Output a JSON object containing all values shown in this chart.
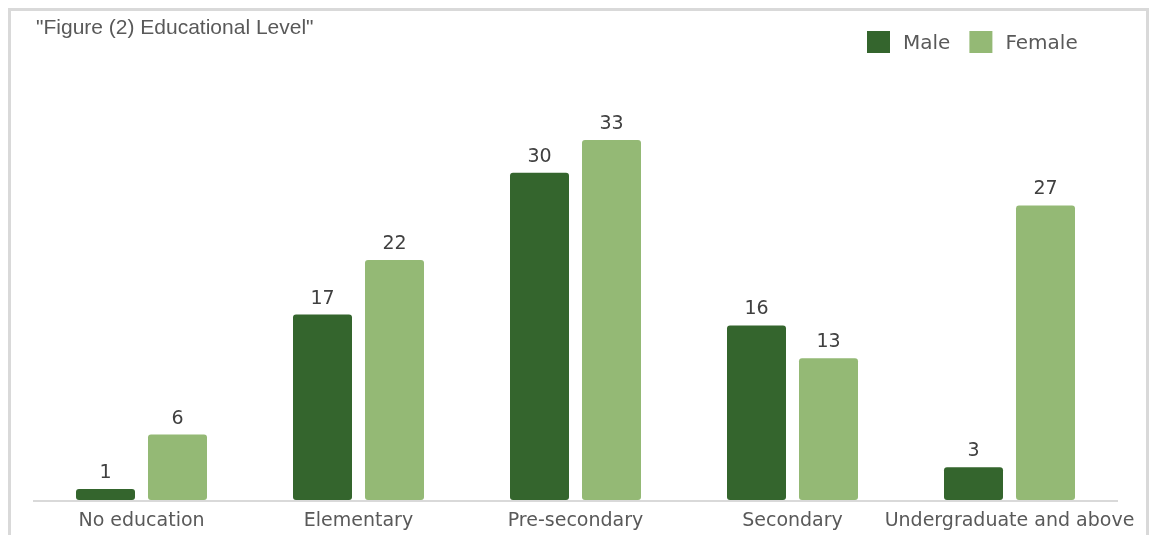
{
  "chart_data": {
    "type": "bar",
    "title": "\"Figure (2) Educational Level\"",
    "categories": [
      "No education",
      "Elementary",
      "Pre-secondary",
      "Secondary",
      "Undergraduate and above"
    ],
    "series": [
      {
        "name": "Male",
        "color": "#34652d",
        "values": [
          1,
          17,
          30,
          16,
          3
        ]
      },
      {
        "name": "Female",
        "color": "#94b975",
        "values": [
          6,
          22,
          33,
          13,
          27
        ]
      }
    ],
    "data_labels": true,
    "legend": "top right"
  }
}
